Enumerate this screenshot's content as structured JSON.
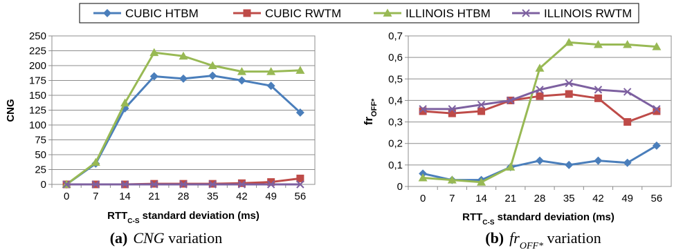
{
  "legend": {
    "entries": [
      "CUBIC HTBM",
      "CUBIC RWTM",
      "ILLINOIS HTBM",
      "ILLINOIS RWTM"
    ]
  },
  "colors": {
    "CUBIC HTBM": "#4a7ebb",
    "CUBIC RWTM": "#be4b48",
    "ILLINOIS HTBM": "#98b954",
    "ILLINOIS RWTM": "#7d60a0"
  },
  "markers": {
    "CUBIC HTBM": "diamond",
    "CUBIC RWTM": "square",
    "ILLINOIS HTBM": "triangle",
    "ILLINOIS RWTM": "x"
  },
  "chart_data": [
    {
      "type": "line",
      "caption_label": "(a)",
      "caption_italic": "CNG",
      "caption_rest": " variation",
      "ylabel": "CNG",
      "xlabel_main": "RTT",
      "xlabel_sub": "C-S",
      "xlabel_rest": " standard deviation (ms)",
      "categories": [
        "0",
        "7",
        "14",
        "21",
        "28",
        "35",
        "42",
        "49",
        "56"
      ],
      "ylim": [
        0,
        250
      ],
      "yticks": [
        "0",
        "25",
        "50",
        "75",
        "100",
        "125",
        "150",
        "175",
        "200",
        "225",
        "250"
      ],
      "grid": true,
      "series": [
        {
          "name": "CUBIC HTBM",
          "values": [
            0,
            35,
            128,
            182,
            178,
            183,
            175,
            166,
            121
          ]
        },
        {
          "name": "CUBIC RWTM",
          "values": [
            0,
            0,
            0,
            1,
            1,
            1,
            2,
            4,
            10
          ]
        },
        {
          "name": "ILLINOIS HTBM",
          "values": [
            0,
            37,
            137,
            222,
            216,
            200,
            190,
            190,
            192
          ]
        },
        {
          "name": "ILLINOIS RWTM",
          "values": [
            0,
            0,
            0,
            0,
            0,
            0,
            0,
            0,
            0
          ]
        }
      ]
    },
    {
      "type": "line",
      "caption_label": "(b)",
      "caption_italic": "fr",
      "caption_sub": "OFF*",
      "caption_rest": " variation",
      "ylabel_main": "fr",
      "ylabel_sub": "OFF*",
      "xlabel_main": "RTT",
      "xlabel_sub": "C-S",
      "xlabel_rest": " standard deviation (ms)",
      "categories": [
        "0",
        "7",
        "14",
        "21",
        "28",
        "35",
        "42",
        "49",
        "56"
      ],
      "ylim": [
        0,
        0.7
      ],
      "yticks": [
        "0",
        "0,1",
        "0,2",
        "0,3",
        "0,4",
        "0,5",
        "0,6",
        "0,7"
      ],
      "grid": true,
      "series": [
        {
          "name": "CUBIC HTBM",
          "values": [
            0.06,
            0.03,
            0.03,
            0.09,
            0.12,
            0.1,
            0.12,
            0.11,
            0.19
          ]
        },
        {
          "name": "CUBIC RWTM",
          "values": [
            0.35,
            0.34,
            0.35,
            0.4,
            0.42,
            0.43,
            0.41,
            0.3,
            0.35
          ]
        },
        {
          "name": "ILLINOIS HTBM",
          "values": [
            0.04,
            0.03,
            0.02,
            0.09,
            0.55,
            0.67,
            0.66,
            0.66,
            0.65
          ]
        },
        {
          "name": "ILLINOIS RWTM",
          "values": [
            0.36,
            0.36,
            0.38,
            0.4,
            0.45,
            0.48,
            0.45,
            0.44,
            0.36
          ]
        }
      ]
    }
  ]
}
